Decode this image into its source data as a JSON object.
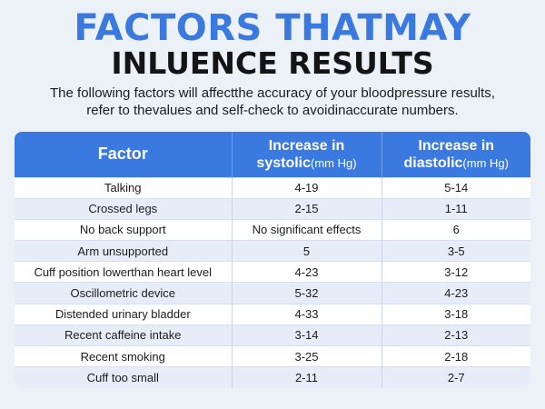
{
  "header": {
    "title_line1": "FACTORS THATMAY",
    "title_line2": "INLUENCE RESULTS",
    "subtitle_line1": "The following factors will affectthe accuracy of your bloodpressure results,",
    "subtitle_line2": "refer to thevalues and self-check to avoidinaccurate numbers."
  },
  "colors": {
    "accent": "#3a7ae0",
    "background": "#ecf1f8",
    "row_alt": "#e6edf8"
  },
  "table": {
    "headers": {
      "factor": "Factor",
      "systolic_line1": "Increase in",
      "systolic_word": "systolic",
      "systolic_unit": "(mm Hg)",
      "diastolic_line1": "Increase in",
      "diastolic_word": "diastolic",
      "diastolic_unit": "(mm Hg)"
    },
    "rows": [
      [
        "Talking",
        "4-19",
        "5-14"
      ],
      [
        "Crossed legs",
        "2-15",
        "1-11"
      ],
      [
        "No back support",
        "No significant effects",
        "6"
      ],
      [
        "Arm unsupported",
        "5",
        "3-5"
      ],
      [
        "Cuff position lowerthan heart level",
        "4-23",
        "3-12"
      ],
      [
        "Oscillometric device",
        "5-32",
        "4-23"
      ],
      [
        "Distended urinary bladder",
        "4-33",
        "3-18"
      ],
      [
        "Recent caffeine intake",
        "3-14",
        "2-13"
      ],
      [
        "Recent smoking",
        "3-25",
        "2-18"
      ],
      [
        "Cuff too small",
        "2-11",
        "2-7"
      ]
    ]
  }
}
